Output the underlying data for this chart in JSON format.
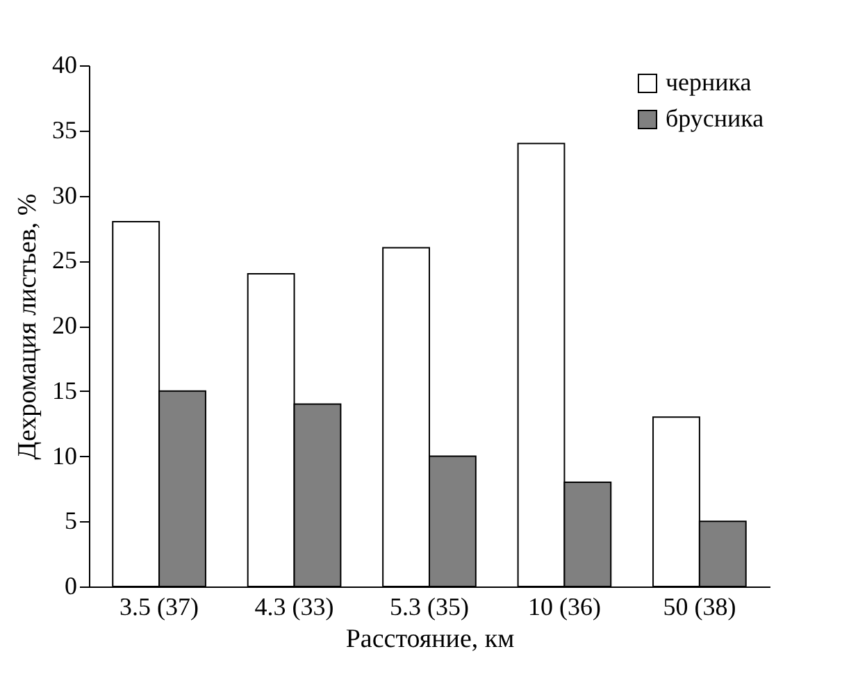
{
  "chart_data": {
    "type": "bar",
    "xlabel": "Расстояние, км",
    "ylabel": "Дехромация листьев, %",
    "categories": [
      "3.5 (37)",
      "4.3 (33)",
      "5.3 (35)",
      "10 (36)",
      "50 (38)"
    ],
    "series": [
      {
        "name": "черника",
        "color": "#ffffff",
        "values": [
          28,
          24,
          26,
          34,
          13
        ]
      },
      {
        "name": "брусника",
        "color": "#808080",
        "values": [
          15,
          14,
          10,
          8,
          5
        ]
      }
    ],
    "ylim": [
      0,
      40
    ],
    "yticks": [
      0,
      5,
      10,
      15,
      20,
      25,
      30,
      35,
      40
    ],
    "grid": false,
    "legend": "top right"
  }
}
